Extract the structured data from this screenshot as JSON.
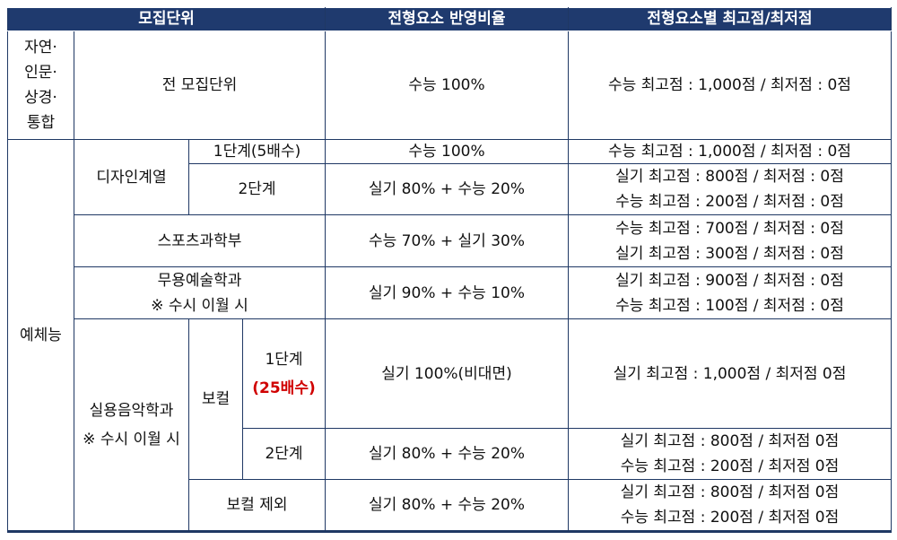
{
  "header": [
    "모집단위",
    "전형요소 반영비율",
    "전형요소별 최고점/최저점"
  ],
  "general": {
    "group": [
      "자연·",
      "인문·",
      "상경·",
      "통합"
    ],
    "unit": "전 모집단위",
    "ratio": "수능 100%",
    "scores": [
      "수능 최고점 : 1,000점 / 최저점 : 0점"
    ]
  },
  "arts": {
    "group": "예체능",
    "design": {
      "name": "디자인계열",
      "stage1": {
        "stage": "1단계(5배수)",
        "ratio": "수능 100%",
        "scores": [
          "수능 최고점 : 1,000점 / 최저점 : 0점"
        ]
      },
      "stage2": {
        "stage": "2단계",
        "ratio": "실기 80% + 수능 20%",
        "scores": [
          "실기 최고점 : 800점 / 최저점 : 0점",
          "수능 최고점 : 200점 / 최저점 : 0점"
        ]
      }
    },
    "sports": {
      "name": "스포츠과학부",
      "ratio": "수능 70% + 실기 30%",
      "scores": [
        "수능 최고점 : 700점 / 최저점 : 0점",
        "실기 최고점 : 300점 / 최저점 : 0점"
      ]
    },
    "dance": {
      "name": [
        "무용예술학과",
        "※ 수시 이월 시"
      ],
      "ratio": "실기 90% + 수능 10%",
      "scores": [
        "실기 최고점 : 900점 / 최저점 : 0점",
        "수능 최고점 : 100점 / 최저점 : 0점"
      ]
    },
    "music": {
      "name": [
        "실용음악학과",
        "※ 수시 이월 시"
      ],
      "vocal": {
        "name": "보컬",
        "stage1": {
          "stage": "1단계",
          "note": "(25배수)",
          "ratio": "실기 100%(비대면)",
          "scores": [
            "실기 최고점 : 1,000점 / 최저점 0점"
          ]
        },
        "stage2": {
          "stage": "2단계",
          "ratio": "실기 80% + 수능 20%",
          "scores": [
            "실기 최고점 : 800점 / 최저점 0점",
            "수능 최고점 : 200점 / 최저점 0점"
          ]
        }
      },
      "non_vocal": {
        "name": "보컬 제외",
        "ratio": "실기 80% + 수능 20%",
        "scores": [
          "실기 최고점 : 800점 / 최저점 0점",
          "수능 최고점 : 200점 / 최저점 0점"
        ]
      }
    }
  }
}
